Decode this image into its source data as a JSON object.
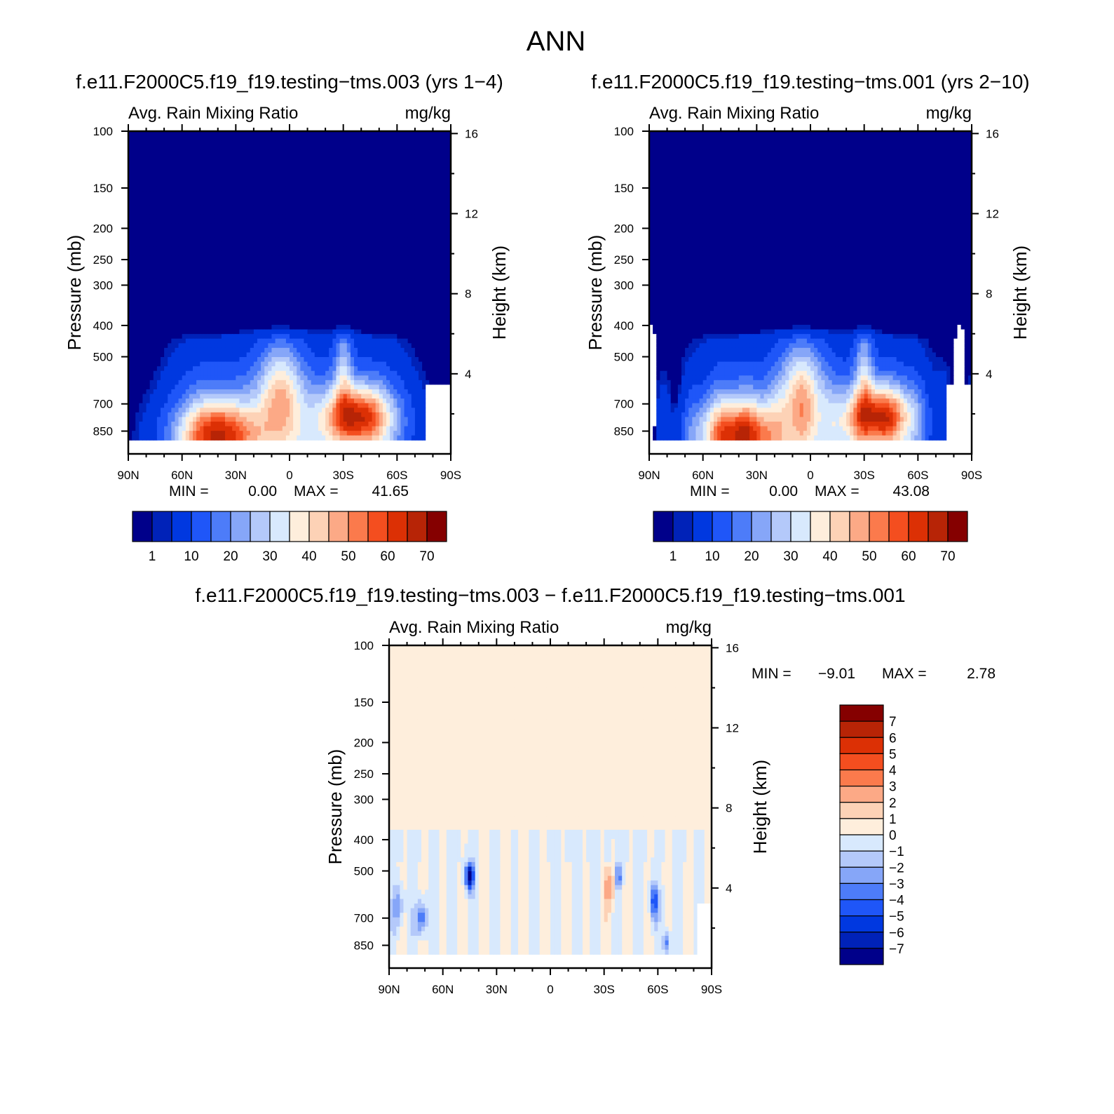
{
  "figure": {
    "title": "ANN",
    "diff_title": "f.e11.F2000C5.f19_f19.testing−tms.003 − f.e11.F2000C5.f19_f19.testing−tms.001"
  },
  "axes": {
    "x_ticks": [
      "90N",
      "60N",
      "30N",
      "0",
      "30S",
      "60S",
      "90S"
    ],
    "x_values": [
      90,
      60,
      30,
      0,
      -30,
      -60,
      -90
    ],
    "p_ticks": [
      "100",
      "150",
      "200",
      "250",
      "300",
      "400",
      "500",
      "700",
      "850"
    ],
    "p_values": [
      100,
      150,
      200,
      250,
      300,
      400,
      500,
      700,
      850
    ],
    "h_ticks": [
      "16",
      "12",
      "8",
      "4"
    ],
    "h_values": [
      16,
      12,
      8,
      4
    ],
    "ylabel_left": "Pressure (mb)",
    "ylabel_right": "Height (km)"
  },
  "chart_data": [
    {
      "type": "heatmap",
      "title": "f.e11.F2000C5.f19_f19.testing−tms.003 (yrs 1−4)",
      "subtitle_left": "Avg. Rain Mixing Ratio",
      "subtitle_right": "mg/kg",
      "xlabel": "",
      "ylabel": "Pressure (mb)",
      "ylabel_right": "Height (km)",
      "xlim": [
        90,
        -90
      ],
      "ylim": [
        1000,
        100
      ],
      "yscale": "log",
      "min_label": "MIN =",
      "min_value": "0.00",
      "max_label": "MAX =",
      "max_value": "41.65",
      "colorbar_labels": [
        "1",
        "10",
        "20",
        "30",
        "40",
        "50",
        "60",
        "70"
      ],
      "colorbar_colors": [
        "#00008a",
        "#0022b8",
        "#0038e0",
        "#1f56f8",
        "#4d7cf9",
        "#86a6f8",
        "#b4c9fa",
        "#d8e9fd",
        "#feeedc",
        "#fdd2b6",
        "#fca986",
        "#fb7a4c",
        "#f44e1f",
        "#dc3005",
        "#b72406",
        "#850000"
      ],
      "colorbar_orientation": "horizontal"
    },
    {
      "type": "heatmap",
      "title": "f.e11.F2000C5.f19_f19.testing−tms.001 (yrs 2−10)",
      "subtitle_left": "Avg. Rain Mixing Ratio",
      "subtitle_right": "mg/kg",
      "xlabel": "",
      "ylabel": "Pressure (mb)",
      "ylabel_right": "Height (km)",
      "xlim": [
        90,
        -90
      ],
      "ylim": [
        1000,
        100
      ],
      "yscale": "log",
      "min_label": "MIN =",
      "min_value": "0.00",
      "max_label": "MAX =",
      "max_value": "43.08",
      "colorbar_labels": [
        "1",
        "10",
        "20",
        "30",
        "40",
        "50",
        "60",
        "70"
      ],
      "colorbar_colors": [
        "#00008a",
        "#0022b8",
        "#0038e0",
        "#1f56f8",
        "#4d7cf9",
        "#86a6f8",
        "#b4c9fa",
        "#d8e9fd",
        "#feeedc",
        "#fdd2b6",
        "#fca986",
        "#fb7a4c",
        "#f44e1f",
        "#dc3005",
        "#b72406",
        "#850000"
      ],
      "colorbar_orientation": "horizontal"
    },
    {
      "type": "heatmap",
      "title": "f.e11.F2000C5.f19_f19.testing−tms.003 − f.e11.F2000C5.f19_f19.testing−tms.001",
      "subtitle_left": "Avg. Rain Mixing Ratio",
      "subtitle_right": "mg/kg",
      "xlabel": "",
      "ylabel": "Pressure (mb)",
      "ylabel_right": "Height (km)",
      "xlim": [
        90,
        -90
      ],
      "ylim": [
        1000,
        100
      ],
      "yscale": "log",
      "min_label": "MIN =",
      "min_value": "−9.01",
      "max_label": "MAX =",
      "max_value": "2.78",
      "colorbar_labels": [
        "7",
        "6",
        "5",
        "4",
        "3",
        "2",
        "1",
        "0",
        "−1",
        "−2",
        "−3",
        "−4",
        "−5",
        "−6",
        "−7"
      ],
      "colorbar_colors": [
        "#850000",
        "#b72406",
        "#dc3005",
        "#f44e1f",
        "#fb7a4c",
        "#fca986",
        "#fdd2b6",
        "#feeedc",
        "#d8e9fd",
        "#b4c9fa",
        "#86a6f8",
        "#4d7cf9",
        "#1f56f8",
        "#0038e0",
        "#0022b8",
        "#00008a"
      ],
      "colorbar_orientation": "vertical"
    }
  ]
}
